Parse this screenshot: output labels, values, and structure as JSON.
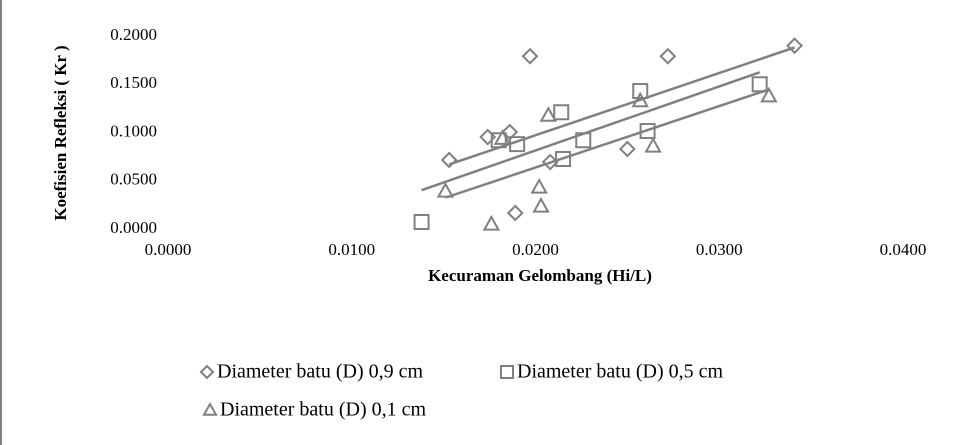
{
  "chart_data": {
    "type": "scatter",
    "xlabel": "Kecuraman Gelombang (Hi/L)",
    "ylabel": "Koefisien Refleksi ( Kr )",
    "xlim": [
      0,
      0.04
    ],
    "ylim": [
      0,
      0.2
    ],
    "xticks": [
      {
        "value": 0,
        "label": "0.0000"
      },
      {
        "value": 0.01,
        "label": "0.0100"
      },
      {
        "value": 0.02,
        "label": "0.0200"
      },
      {
        "value": 0.03,
        "label": "0.0300"
      },
      {
        "value": 0.04,
        "label": "0.0400"
      }
    ],
    "yticks": [
      {
        "value": 0,
        "label": "0.0000"
      },
      {
        "value": 0.05,
        "label": "0.0500"
      },
      {
        "value": 0.1,
        "label": "0.1000"
      },
      {
        "value": 0.15,
        "label": "0.1500"
      },
      {
        "value": 0.2,
        "label": "0.2000"
      }
    ],
    "trendline": true,
    "legend": "bottom",
    "series": [
      {
        "name": "Diameter batu (D) 0,9 cm",
        "color": "#808080",
        "marker": "diamond",
        "x": [
          0.0153,
          0.0174,
          0.0186,
          0.0197,
          0.0189,
          0.0208,
          0.025,
          0.0272,
          0.0341
        ],
        "values": [
          0.0715,
          0.0953,
          0.1005,
          0.179,
          0.0166,
          0.0694,
          0.0829,
          0.179,
          0.19
        ]
      },
      {
        "name": "Diameter batu (D) 0,5 cm",
        "color": "#808080",
        "marker": "square",
        "x": [
          0.0138,
          0.018,
          0.019,
          0.0214,
          0.0215,
          0.0226,
          0.0257,
          0.0261,
          0.0322
        ],
        "values": [
          0.0073,
          0.092,
          0.088,
          0.121,
          0.0725,
          0.092,
          0.143,
          0.1015,
          0.15
        ]
      },
      {
        "name": "Diameter batu (D) 0,1 cm",
        "color": "#808080",
        "marker": "triangle",
        "x": [
          0.0151,
          0.0176,
          0.0182,
          0.0202,
          0.0203,
          0.0207,
          0.0257,
          0.0264,
          0.0327
        ],
        "values": [
          0.0394,
          0.0052,
          0.094,
          0.0435,
          0.0238,
          0.118,
          0.133,
          0.086,
          0.138
        ]
      }
    ]
  }
}
